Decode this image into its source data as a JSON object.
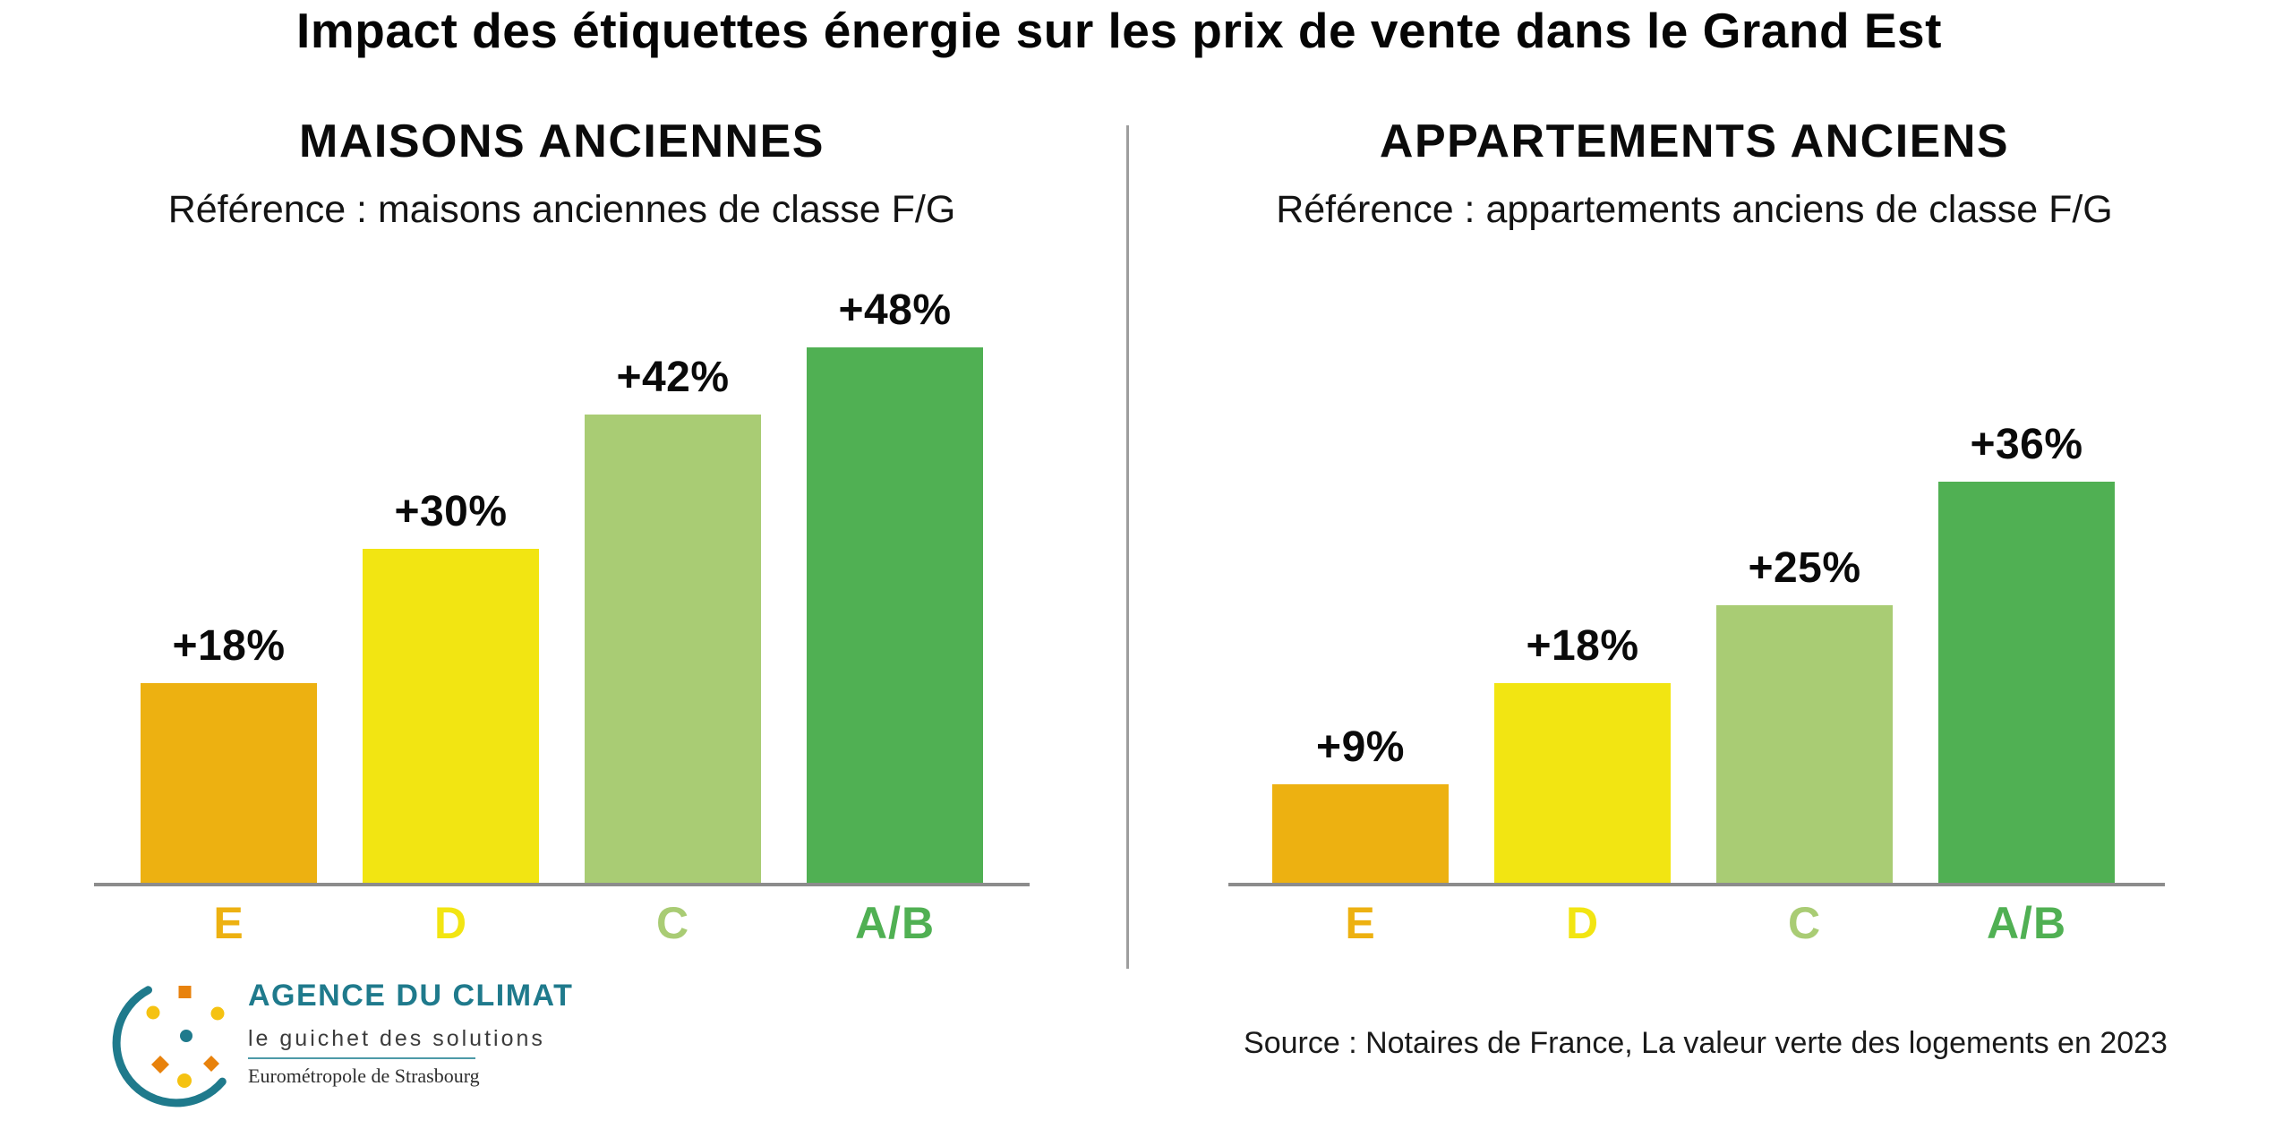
{
  "page": {
    "title": "Impact des étiquettes énergie sur les prix de vente dans le Grand Est",
    "source": "Source : Notaires de France, La valeur verte des logements en 2023"
  },
  "chart_data": [
    {
      "type": "bar",
      "title": "MAISONS ANCIENNES",
      "subtitle": "Référence : maisons anciennes de classe F/G",
      "categories": [
        "E",
        "D",
        "C",
        "A/B"
      ],
      "values": [
        18,
        30,
        42,
        48
      ],
      "value_labels": [
        "+18%",
        "+30%",
        "+42%",
        "+48%"
      ],
      "bar_colors": [
        "#EDB111",
        "#F2E512",
        "#A9CC74",
        "#50B053"
      ],
      "unit": "percent",
      "ylim": [
        0,
        50
      ],
      "grid": false,
      "legend": "none"
    },
    {
      "type": "bar",
      "title": "APPARTEMENTS ANCIENS",
      "subtitle": "Référence : appartements anciens de classe F/G",
      "categories": [
        "E",
        "D",
        "C",
        "A/B"
      ],
      "values": [
        9,
        18,
        25,
        36
      ],
      "value_labels": [
        "+9%",
        "+18%",
        "+25%",
        "+36%"
      ],
      "bar_colors": [
        "#EDB111",
        "#F2E512",
        "#A9CC74",
        "#50B053"
      ],
      "unit": "percent",
      "ylim": [
        0,
        50
      ],
      "grid": false,
      "legend": "none"
    }
  ],
  "logo": {
    "name": "AGENCE DU CLIMAT",
    "tagline": "le guichet des solutions",
    "org": "Eurométropole de Strasbourg",
    "teal": "#1F7A8C",
    "orange": "#E8820C",
    "yellow": "#F5C211"
  },
  "colors": {
    "axis_gray": "#8C8C8C",
    "divider_gray": "#9E9E9E",
    "title_black": "#050505"
  }
}
